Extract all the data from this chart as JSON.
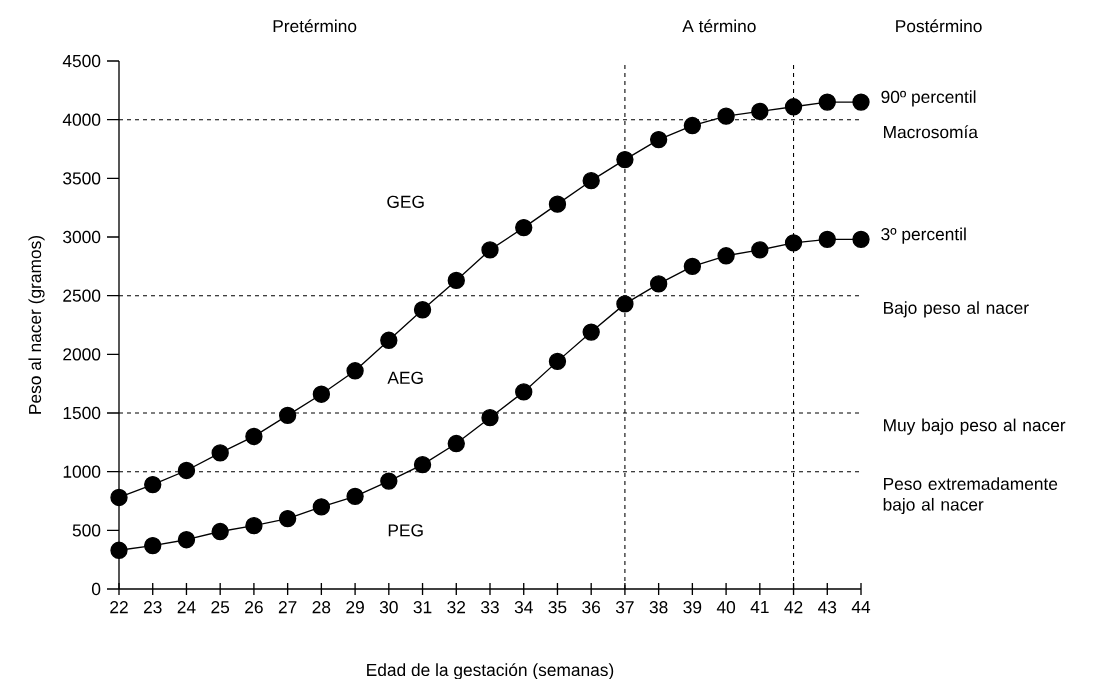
{
  "chart_data": {
    "type": "line",
    "xlabel": "Edad de la gestación (semanas)",
    "ylabel": "Peso al nacer (gramos)",
    "x": [
      22,
      23,
      24,
      25,
      26,
      27,
      28,
      29,
      30,
      31,
      32,
      33,
      34,
      35,
      36,
      37,
      38,
      39,
      40,
      41,
      42,
      43,
      44
    ],
    "series": [
      {
        "name": "90º percentil",
        "color": "#000000",
        "values": [
          780,
          890,
          1010,
          1160,
          1300,
          1480,
          1660,
          1860,
          2120,
          2380,
          2630,
          2890,
          3080,
          3280,
          3480,
          3660,
          3830,
          3950,
          4030,
          4070,
          4110,
          4150,
          4150
        ]
      },
      {
        "name": "3º percentil",
        "color": "#000000",
        "values": [
          330,
          370,
          420,
          490,
          540,
          600,
          700,
          790,
          920,
          1060,
          1240,
          1460,
          1680,
          1940,
          2190,
          2430,
          2600,
          2750,
          2840,
          2890,
          2950,
          2980,
          2980
        ]
      }
    ],
    "xlim": [
      22,
      44
    ],
    "ylim": [
      0,
      4500
    ],
    "xticks": [
      22,
      23,
      24,
      25,
      26,
      27,
      28,
      29,
      30,
      31,
      32,
      33,
      34,
      35,
      36,
      37,
      38,
      39,
      40,
      41,
      42,
      43,
      44
    ],
    "yticks": [
      0,
      500,
      1000,
      1500,
      2000,
      2500,
      3000,
      3500,
      4000,
      4500
    ],
    "marker": "circle",
    "line_style": "solid",
    "ref_lines": [
      {
        "axis": "y",
        "value": 4000,
        "label": "Macrosomía",
        "line_style": "dashed"
      },
      {
        "axis": "y",
        "value": 2500,
        "label": "Bajo peso al nacer",
        "line_style": "dashed"
      },
      {
        "axis": "y",
        "value": 1500,
        "label": "Muy bajo peso al nacer",
        "line_style": "dashed"
      },
      {
        "axis": "y",
        "value": 1000,
        "label": "Peso extremadamente bajo al nacer",
        "line_style": "dashed"
      },
      {
        "axis": "x",
        "value": 37,
        "line_style": "dashed"
      },
      {
        "axis": "x",
        "value": 42,
        "line_style": "dashed"
      }
    ],
    "annotations": [
      "Pretérmino",
      "A término",
      "Postérmino",
      "GEG",
      "AEG",
      "PEG"
    ]
  }
}
